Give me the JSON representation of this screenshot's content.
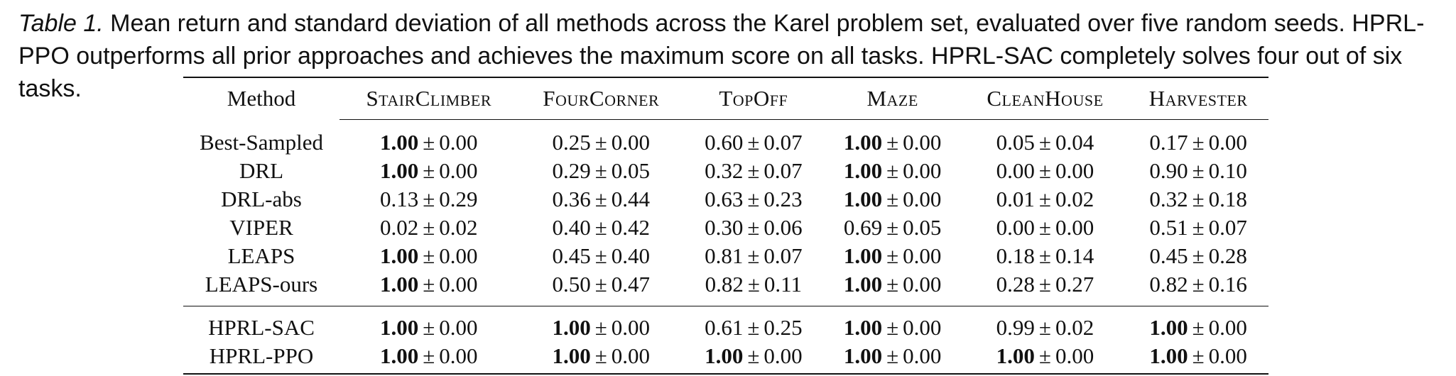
{
  "caption": {
    "label": "Table 1.",
    "text": " Mean return and standard deviation of all methods across the Karel problem set, evaluated over five random seeds. HPRL-PPO outperforms all prior approaches and achieves the maximum score on all tasks. HPRL-SAC completely solves four out of six tasks."
  },
  "table": {
    "method_header": "Method",
    "task_headers": [
      "StairClimber",
      "FourCorner",
      "TopOff",
      "Maze",
      "CleanHouse",
      "Harvester"
    ],
    "groups": [
      [
        {
          "method": "Best-Sampled",
          "cells": [
            [
              "1.00",
              "0.00",
              true
            ],
            [
              "0.25",
              "0.00",
              false
            ],
            [
              "0.60",
              "0.07",
              false
            ],
            [
              "1.00",
              "0.00",
              true
            ],
            [
              "0.05",
              "0.04",
              false
            ],
            [
              "0.17",
              "0.00",
              false
            ]
          ]
        },
        {
          "method": "DRL",
          "cells": [
            [
              "1.00",
              "0.00",
              true
            ],
            [
              "0.29",
              "0.05",
              false
            ],
            [
              "0.32",
              "0.07",
              false
            ],
            [
              "1.00",
              "0.00",
              true
            ],
            [
              "0.00",
              "0.00",
              false
            ],
            [
              "0.90",
              "0.10",
              false
            ]
          ]
        },
        {
          "method": "DRL-abs",
          "cells": [
            [
              "0.13",
              "0.29",
              false
            ],
            [
              "0.36",
              "0.44",
              false
            ],
            [
              "0.63",
              "0.23",
              false
            ],
            [
              "1.00",
              "0.00",
              true
            ],
            [
              "0.01",
              "0.02",
              false
            ],
            [
              "0.32",
              "0.18",
              false
            ]
          ]
        },
        {
          "method": "VIPER",
          "cells": [
            [
              "0.02",
              "0.02",
              false
            ],
            [
              "0.40",
              "0.42",
              false
            ],
            [
              "0.30",
              "0.06",
              false
            ],
            [
              "0.69",
              "0.05",
              false
            ],
            [
              "0.00",
              "0.00",
              false
            ],
            [
              "0.51",
              "0.07",
              false
            ]
          ]
        },
        {
          "method": "LEAPS",
          "cells": [
            [
              "1.00",
              "0.00",
              true
            ],
            [
              "0.45",
              "0.40",
              false
            ],
            [
              "0.81",
              "0.07",
              false
            ],
            [
              "1.00",
              "0.00",
              true
            ],
            [
              "0.18",
              "0.14",
              false
            ],
            [
              "0.45",
              "0.28",
              false
            ]
          ]
        },
        {
          "method": "LEAPS-ours",
          "cells": [
            [
              "1.00",
              "0.00",
              true
            ],
            [
              "0.50",
              "0.47",
              false
            ],
            [
              "0.82",
              "0.11",
              false
            ],
            [
              "1.00",
              "0.00",
              true
            ],
            [
              "0.28",
              "0.27",
              false
            ],
            [
              "0.82",
              "0.16",
              false
            ]
          ]
        }
      ],
      [
        {
          "method": "HPRL-SAC",
          "cells": [
            [
              "1.00",
              "0.00",
              true
            ],
            [
              "1.00",
              "0.00",
              true
            ],
            [
              "0.61",
              "0.25",
              false
            ],
            [
              "1.00",
              "0.00",
              true
            ],
            [
              "0.99",
              "0.02",
              false
            ],
            [
              "1.00",
              "0.00",
              true
            ]
          ]
        },
        {
          "method": "HPRL-PPO",
          "cells": [
            [
              "1.00",
              "0.00",
              true
            ],
            [
              "1.00",
              "0.00",
              true
            ],
            [
              "1.00",
              "0.00",
              true
            ],
            [
              "1.00",
              "0.00",
              true
            ],
            [
              "1.00",
              "0.00",
              true
            ],
            [
              "1.00",
              "0.00",
              true
            ]
          ]
        }
      ]
    ]
  }
}
